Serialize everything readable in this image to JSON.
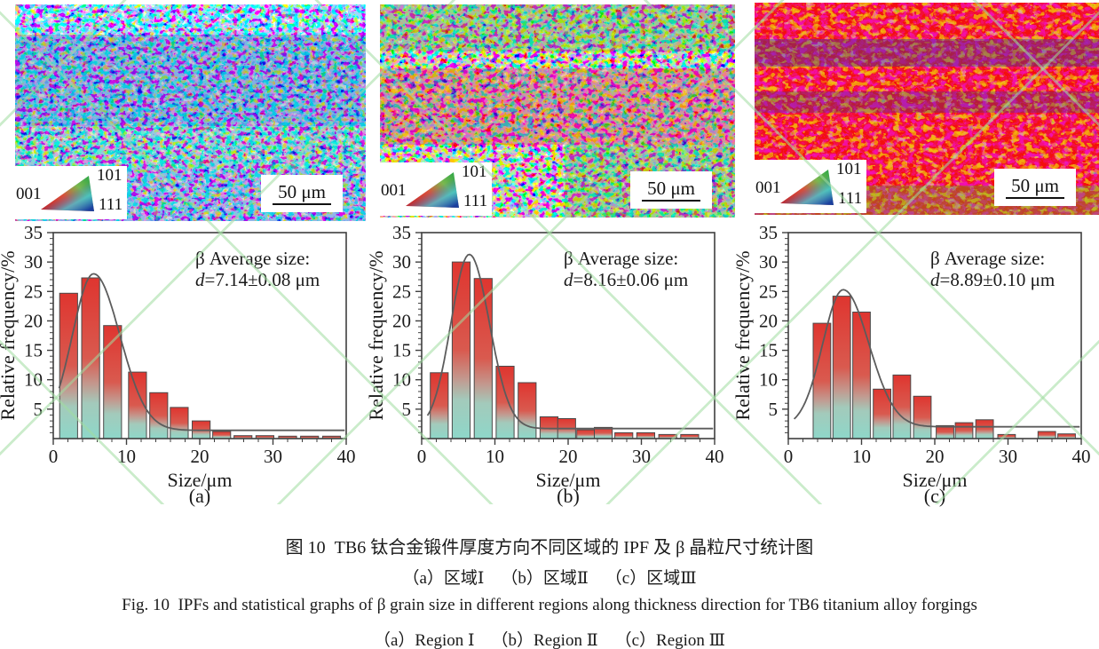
{
  "colors": {
    "bar_top": "#df352f",
    "bar_mid": "#d95a4f",
    "bar_fade": "#c3988e",
    "bar_low": "#a3cabb",
    "bar_bottom": "#8ed7c9",
    "bar_stroke": "#4a4a4a",
    "curve": "#5c5c5c",
    "axis": "#3f3f3f",
    "watermark_green": "#a0dca0",
    "ipf_red": "#c92425",
    "ipf_green": "#35a848",
    "ipf_blue": "#1b3f9e",
    "ipf_cyan": "#3fc8e0"
  },
  "ipf_panels": [
    {
      "id": "a",
      "legend": {
        "c001": "001",
        "c101": "101",
        "c111": "111"
      },
      "scale_bar_label": "50 μm",
      "dominant_colors": [
        "blue",
        "green",
        "red",
        "magenta"
      ]
    },
    {
      "id": "b",
      "legend": {
        "c001": "001",
        "c101": "101",
        "c111": "111"
      },
      "scale_bar_label": "50 μm",
      "dominant_colors": [
        "green",
        "red",
        "magenta",
        "blue"
      ]
    },
    {
      "id": "c",
      "legend": {
        "c001": "001",
        "c101": "101",
        "c111": "111"
      },
      "scale_bar_label": "50 μm",
      "dominant_colors": [
        "red",
        "orange",
        "blue",
        "green"
      ]
    }
  ],
  "chart_data": [
    {
      "type": "bar",
      "panel": "a",
      "title": "",
      "xlabel": "Size/μm",
      "ylabel": "Relative frequency/%",
      "xlim": [
        0,
        40
      ],
      "ylim": [
        0,
        35
      ],
      "x_ticks": [
        0,
        10,
        20,
        30,
        40
      ],
      "x_minor_step": 2,
      "y_ticks": [
        5,
        10,
        15,
        20,
        25,
        30,
        35
      ],
      "y_minor_step": 1,
      "grid": false,
      "legend_position": "none",
      "bin_centers": [
        2.1,
        5.1,
        8.1,
        11.5,
        14.4,
        17.2,
        20.2,
        23.0,
        25.9,
        28.9,
        32.0,
        35.0,
        38.0
      ],
      "values": [
        24.7,
        27.3,
        19.2,
        11.3,
        7.8,
        5.3,
        3.0,
        1.2,
        0.5,
        0.5,
        0.4,
        0.4,
        0.4
      ],
      "bar_width": 2.45,
      "fit_curve": {
        "x0": 5.5,
        "peak": 28.0,
        "sigma_left": 2.9,
        "sigma_right": 3.6,
        "base": 1.4
      },
      "annotation_title": "β Average size:",
      "annotation_value_italic": "d",
      "annotation_value_rest": "=7.14±0.08 μm",
      "label": "(a)"
    },
    {
      "type": "bar",
      "panel": "b",
      "title": "",
      "xlabel": "Size/μm",
      "ylabel": "Relative frequency/%",
      "xlim": [
        0,
        40
      ],
      "ylim": [
        0,
        35
      ],
      "x_ticks": [
        0,
        10,
        20,
        30,
        40
      ],
      "x_minor_step": 2,
      "y_ticks": [
        5,
        10,
        15,
        20,
        25,
        30,
        35
      ],
      "y_minor_step": 1,
      "grid": false,
      "legend_position": "none",
      "bin_centers": [
        2.4,
        5.4,
        8.4,
        11.4,
        14.4,
        17.4,
        19.8,
        22.4,
        24.8,
        27.6,
        30.6,
        33.6,
        36.6
      ],
      "values": [
        11.2,
        30.0,
        27.2,
        12.3,
        9.5,
        3.7,
        3.4,
        1.5,
        1.9,
        1.0,
        1.0,
        0.7,
        0.7
      ],
      "bar_width": 2.45,
      "fit_curve": {
        "x0": 6.5,
        "peak": 31.3,
        "sigma_left": 2.5,
        "sigma_right": 2.75,
        "base": 1.7
      },
      "annotation_title": "β Average size:",
      "annotation_value_italic": "d",
      "annotation_value_rest": "=8.16±0.06 μm",
      "label": "(b)"
    },
    {
      "type": "bar",
      "panel": "c",
      "title": "",
      "xlabel": "Size/μm",
      "ylabel": "Relative frequency/%",
      "xlim": [
        0,
        40
      ],
      "ylim": [
        0,
        35
      ],
      "x_ticks": [
        0,
        10,
        20,
        30,
        40
      ],
      "x_minor_step": 2,
      "y_ticks": [
        5,
        10,
        15,
        20,
        25,
        30,
        35
      ],
      "y_minor_step": 1,
      "grid": false,
      "legend_position": "none",
      "bin_centers": [
        4.6,
        7.3,
        10.0,
        12.8,
        15.5,
        18.3,
        21.4,
        24.0,
        26.8,
        29.8,
        35.3,
        38.0
      ],
      "values": [
        19.6,
        24.2,
        21.5,
        8.4,
        10.8,
        7.2,
        2.2,
        2.7,
        3.2,
        0.7,
        1.2,
        0.8
      ],
      "bar_width": 2.4,
      "fit_curve": {
        "x0": 7.5,
        "peak": 25.3,
        "sigma_left": 2.8,
        "sigma_right": 3.5,
        "base": 2.0
      },
      "annotation_title": "β Average size:",
      "annotation_value_italic": "d",
      "annotation_value_rest": "=8.89±0.10 μm",
      "label": "(c)"
    }
  ],
  "captions": {
    "zh_title": "图 10  TB6 钛合金锻件厚度方向不同区域的 IPF 及 β 晶粒尺寸统计图",
    "zh_sub": "（a）区域Ⅰ    （b）区域Ⅱ    （c）区域Ⅲ",
    "en_title": "Fig. 10  IPFs and statistical graphs of β grain size in different regions along thickness direction for TB6 titanium alloy forgings",
    "en_sub": "（a）Region Ⅰ    （b）Region Ⅱ    （c）Region Ⅲ"
  }
}
